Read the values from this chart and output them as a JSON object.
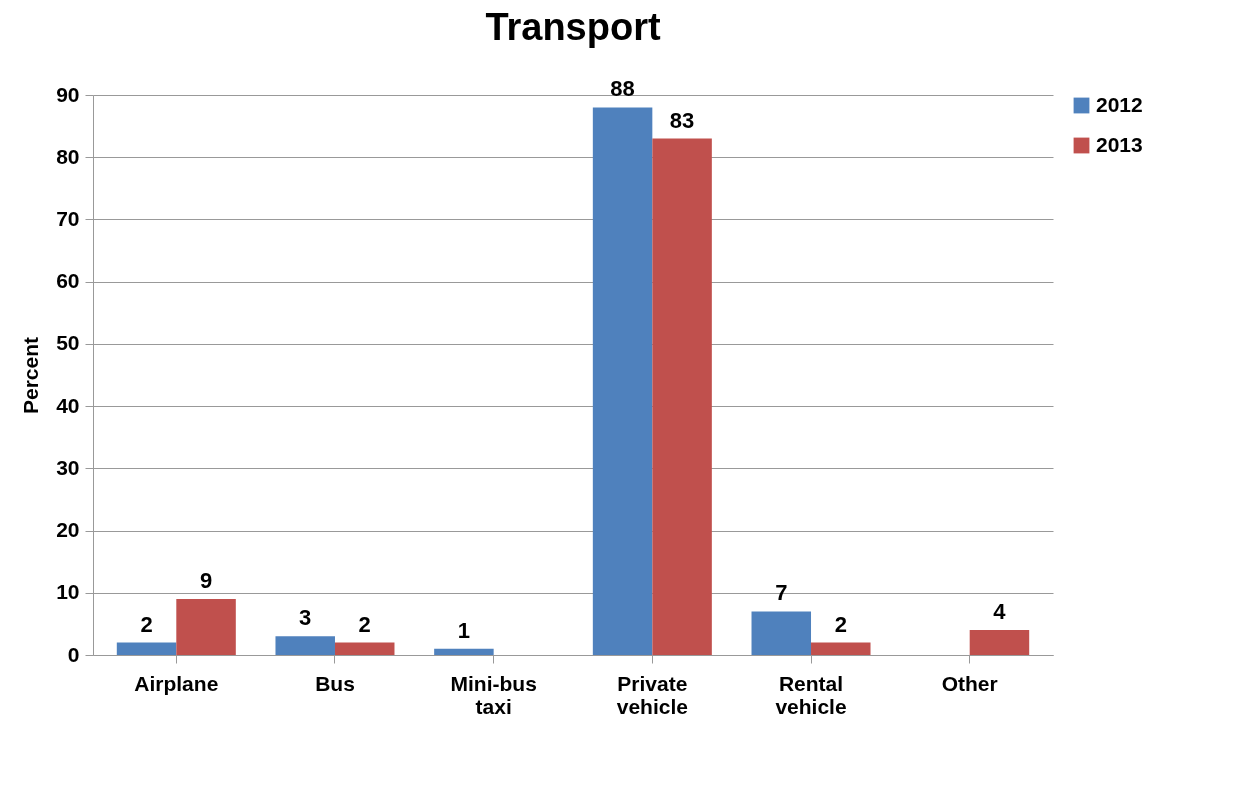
{
  "chart_data": {
    "type": "bar",
    "title": "Transport",
    "ylabel": "Percent",
    "categories": [
      "Airplane",
      "Bus",
      "Mini-bus taxi",
      "Private vehicle",
      "Rental vehicle",
      "Other"
    ],
    "series": [
      {
        "name": "2012",
        "color": "#4f81bd",
        "values": [
          2,
          3,
          1,
          88,
          7,
          null
        ]
      },
      {
        "name": "2013",
        "color": "#c0504d",
        "values": [
          9,
          2,
          null,
          83,
          2,
          4
        ]
      }
    ],
    "ylim": [
      0,
      90
    ],
    "yticks": [
      0,
      10,
      20,
      30,
      40,
      50,
      60,
      70,
      80,
      90
    ],
    "grid": "y",
    "legend": "right",
    "data_labels": true
  }
}
